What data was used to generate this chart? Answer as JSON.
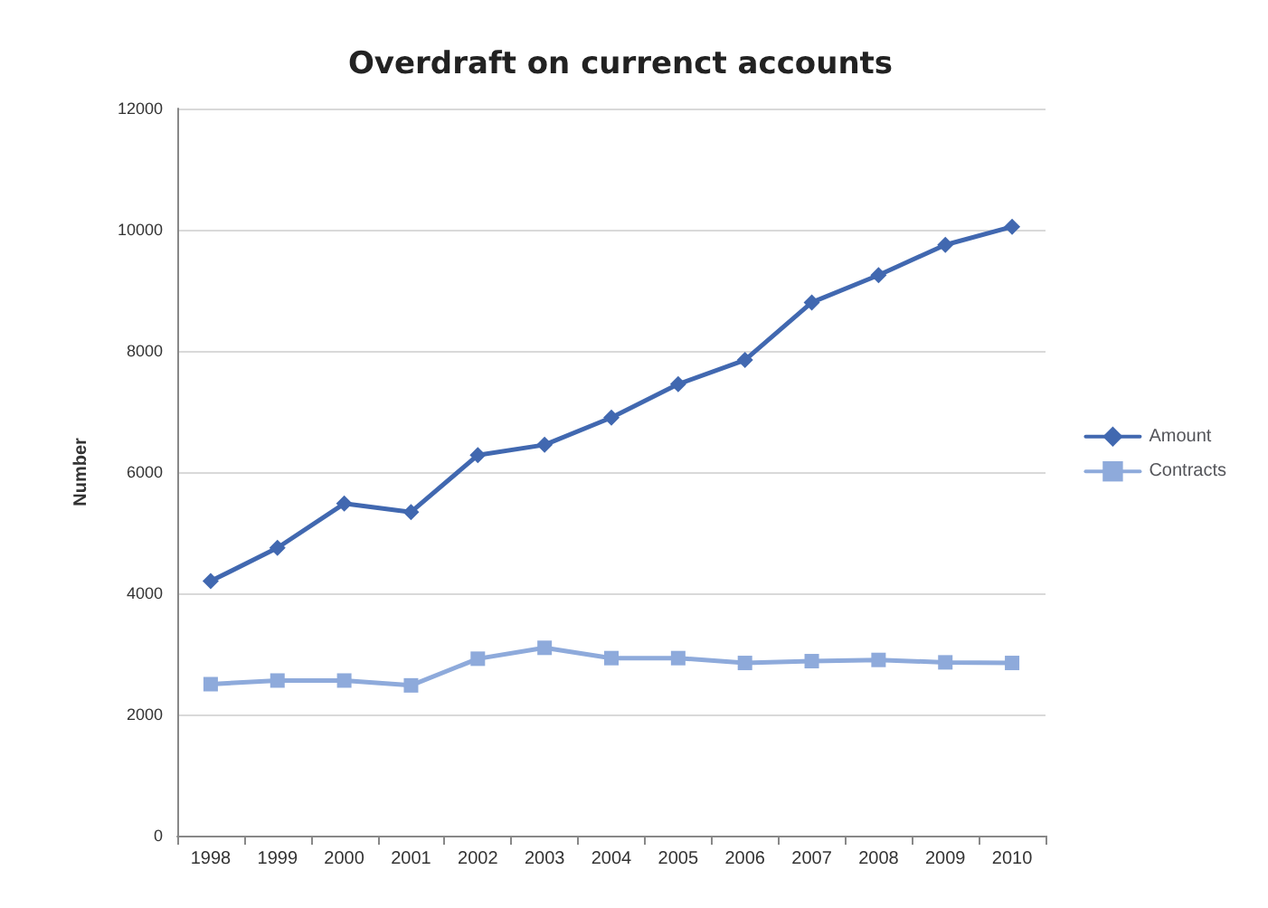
{
  "chart_data": {
    "type": "line",
    "title": "Overdraft on currenct accounts",
    "ylabel": "Number",
    "categories": [
      "1998",
      "1999",
      "2000",
      "2001",
      "2002",
      "2003",
      "2004",
      "2005",
      "2006",
      "2007",
      "2008",
      "2009",
      "2010"
    ],
    "series": [
      {
        "name": "Amount",
        "color": "#4168b0",
        "marker": "diamond",
        "values": [
          4200,
          4750,
          5480,
          5340,
          6280,
          6450,
          6900,
          7450,
          7850,
          8800,
          9250,
          9750,
          10050
        ]
      },
      {
        "name": "Contracts",
        "color": "#8eaadb",
        "marker": "square",
        "values": [
          2500,
          2560,
          2560,
          2480,
          2920,
          3100,
          2930,
          2930,
          2850,
          2880,
          2900,
          2860,
          2850
        ]
      }
    ],
    "ylim": [
      0,
      12000
    ],
    "yticks": [
      0,
      2000,
      4000,
      6000,
      8000,
      10000,
      12000
    ],
    "grid": "y",
    "legend": "right",
    "line_style": "solid"
  }
}
